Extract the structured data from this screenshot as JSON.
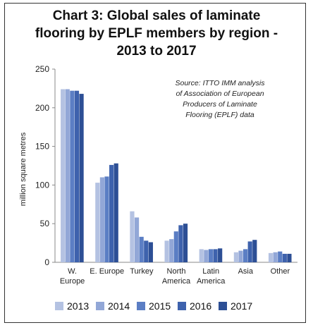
{
  "chart_data": {
    "type": "bar",
    "title": "Chart 3: Global sales of laminate\nflooring by EPLF members by region -\n2013 to 2017",
    "ylabel": "million square metres",
    "xlabel": "",
    "ylim": [
      0,
      250
    ],
    "yticks": [
      0,
      50,
      100,
      150,
      200,
      250
    ],
    "categories": [
      "W.\nEurope",
      "E. Europe",
      "Turkey",
      "North\nAmerica",
      "Latin\nAmerica",
      "Asia",
      "Other"
    ],
    "series": [
      {
        "name": "2013",
        "color": "#b4c2e2",
        "values": [
          224,
          103,
          66,
          28,
          17,
          13,
          12
        ]
      },
      {
        "name": "2014",
        "color": "#92a7d7",
        "values": [
          224,
          110,
          58,
          30,
          16,
          15,
          13
        ]
      },
      {
        "name": "2015",
        "color": "#5b7ec4",
        "values": [
          222,
          111,
          33,
          40,
          17,
          17,
          14
        ]
      },
      {
        "name": "2016",
        "color": "#3e62ad",
        "values": [
          222,
          126,
          28,
          48,
          17,
          27,
          11
        ]
      },
      {
        "name": "2017",
        "color": "#2d4f95",
        "values": [
          218,
          128,
          26,
          50,
          18,
          29,
          11
        ]
      }
    ],
    "annotation": "Source: ITTO IMM analysis\nof Association of European\nProducers of Laminate\nFlooring (EPLF) data",
    "grid": false,
    "legend_position": "bottom"
  }
}
